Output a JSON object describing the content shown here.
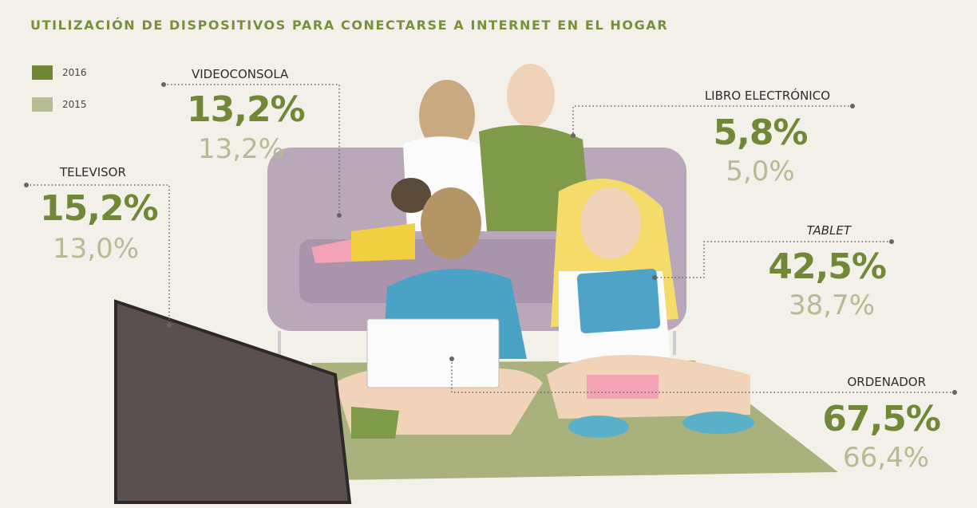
{
  "header": {
    "title": "UTILIZACIÓN DE DISPOSITIVOS PARA CONECTARSE A INTERNET EN EL HOGAR"
  },
  "legend": [
    {
      "label": "2016"
    },
    {
      "label": "2015"
    }
  ],
  "devices": [
    {
      "name": "VIDEOCONSOLA",
      "v2016": "13,2%",
      "v2015": "13,2%"
    },
    {
      "name": "TELEVISOR",
      "v2016": "15,2%",
      "v2015": "13,0%"
    },
    {
      "name": "LIBRO ELECTRÓNICO",
      "v2016": "5,8%",
      "v2015": "5,0%"
    },
    {
      "name": "TABLET",
      "v2016": "42,5%",
      "v2015": "38,7%"
    },
    {
      "name": "ORDENADOR",
      "v2016": "67,5%",
      "v2015": "66,4%"
    }
  ]
}
